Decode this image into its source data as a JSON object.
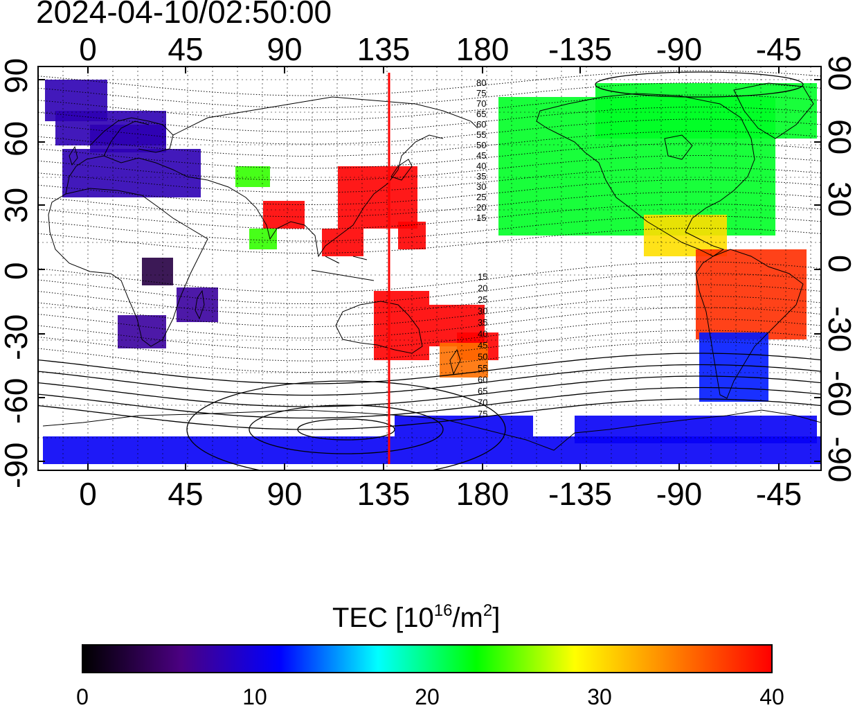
{
  "timestamp": "2024-04-10/02:50:00",
  "lon_ticks": [
    "0",
    "45",
    "90",
    "135",
    "180",
    "-135",
    "-90",
    "-45"
  ],
  "lat_ticks": [
    "90",
    "60",
    "30",
    "0",
    "-30",
    "-60",
    "-90"
  ],
  "contour_labels_north": [
    "80",
    "75",
    "70",
    "65",
    "60",
    "55",
    "50",
    "45",
    "40",
    "35",
    "30",
    "25",
    "20",
    "15"
  ],
  "contour_labels_south": [
    "15",
    "20",
    "25",
    "30",
    "35",
    "40",
    "45",
    "50",
    "55",
    "60",
    "65",
    "70",
    "75"
  ],
  "colorbar": {
    "title": "TEC  [10",
    "title_sup1": "16",
    "title_mid": "/m",
    "title_sup2": "2",
    "title_end": "]",
    "ticks": [
      "0",
      "10",
      "20",
      "30",
      "40"
    ],
    "min": 0,
    "max": 40
  },
  "colors": {
    "terminator_line": "#ff0000",
    "colorbar_stops": [
      "#000000",
      "#4b0082",
      "#0000ff",
      "#00ffff",
      "#00ff00",
      "#ffff00",
      "#ff8000",
      "#ff0000"
    ]
  },
  "map_data": {
    "projection": "equirectangular",
    "lon_range": [
      -22,
      338
    ],
    "lat_range": [
      -95,
      95
    ],
    "terminator_lon": 139,
    "tec_regions": [
      {
        "region": "Europe/North Atlantic",
        "tec": 8
      },
      {
        "region": "Central Africa",
        "tec": 3
      },
      {
        "region": "Southern Africa",
        "tec": 7
      },
      {
        "region": "East Asia/Japan",
        "tec": 40
      },
      {
        "region": "India",
        "tec": 24
      },
      {
        "region": "Australia/Pacific",
        "tec": 40
      },
      {
        "region": "New Zealand",
        "tec": 35
      },
      {
        "region": "North America",
        "tec": 22
      },
      {
        "region": "Central America",
        "tec": 30
      },
      {
        "region": "South America",
        "tec": 38
      },
      {
        "region": "Southern South America",
        "tec": 12
      },
      {
        "region": "Antarctica",
        "tec": 11
      }
    ]
  }
}
